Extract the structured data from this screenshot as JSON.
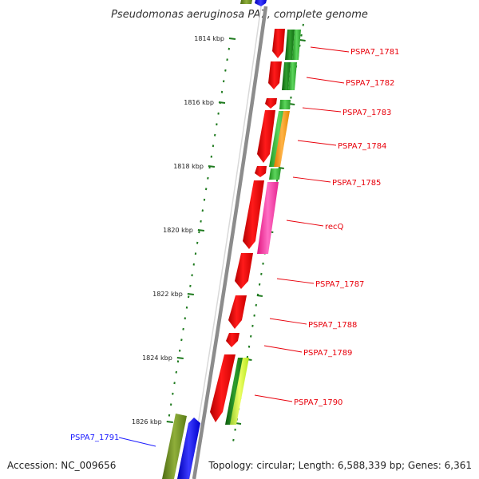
{
  "title": "Pseudomonas aeruginosa PA7, complete genome",
  "footer": {
    "accession": "Accession: NC_009656",
    "summary": "Topology: circular; Length: 6,588,339 bp; Genes: 6,361"
  },
  "ticks": [
    "1814 kbp",
    "1816 kbp",
    "1818 kbp",
    "1820 kbp",
    "1822 kbp",
    "1824 kbp",
    "1826 kbp"
  ],
  "gene_labels": [
    {
      "text": "PSPA7_1781",
      "color": "#e8000b"
    },
    {
      "text": "PSPA7_1782",
      "color": "#e8000b"
    },
    {
      "text": "PSPA7_1783",
      "color": "#e8000b"
    },
    {
      "text": "PSPA7_1784",
      "color": "#e8000b"
    },
    {
      "text": "PSPA7_1785",
      "color": "#e8000b"
    },
    {
      "text": "recQ",
      "color": "#e8000b"
    },
    {
      "text": "PSPA7_1787",
      "color": "#e8000b"
    },
    {
      "text": "PSPA7_1788",
      "color": "#e8000b"
    },
    {
      "text": "PSPA7_1789",
      "color": "#e8000b"
    },
    {
      "text": "PSPA7_1790",
      "color": "#e8000b"
    },
    {
      "text": "PSPA7_1791",
      "color": "#1a1aff"
    }
  ],
  "colors": {
    "cds_forward": "#ff0000",
    "backbone": "#8c8c8c",
    "tick_mark": "#1e7a1e",
    "blast_green": "#3cb83c",
    "blast_orange": "#ff9a1a",
    "blast_pink": "#ff3ca8",
    "blast_lime": "#ccff33",
    "blast_olive": "#6b8e23",
    "cds_blue": "#0000ff"
  }
}
